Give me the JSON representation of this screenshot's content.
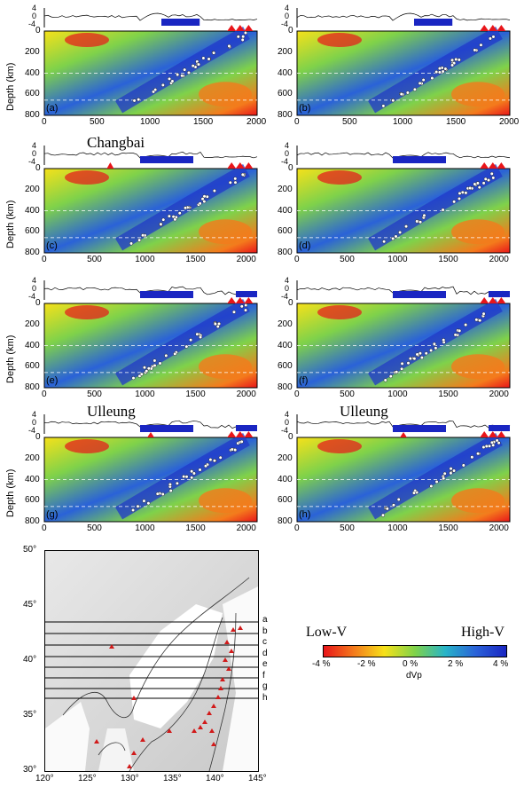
{
  "panels": [
    {
      "id": "a",
      "label": "(a)",
      "xmax": 2000,
      "xticks": [
        "0",
        "500",
        "1000",
        "1500",
        "2000"
      ],
      "site": ""
    },
    {
      "id": "b",
      "label": "(b)",
      "xmax": 2000,
      "xticks": [
        "0",
        "500",
        "1000",
        "1500",
        "2000"
      ],
      "site": ""
    },
    {
      "id": "c",
      "label": "(c)",
      "xmax": 2100,
      "xticks": [
        "0",
        "500",
        "1000",
        "1500",
        "2000"
      ],
      "site": "Changbai"
    },
    {
      "id": "d",
      "label": "(d)",
      "xmax": 2100,
      "xticks": [
        "0",
        "500",
        "1000",
        "1500",
        "2000"
      ],
      "site": ""
    },
    {
      "id": "e",
      "label": "(e)",
      "xmax": 2100,
      "xticks": [
        "0",
        "500",
        "1000",
        "1500",
        "2000"
      ],
      "site": ""
    },
    {
      "id": "f",
      "label": "(f)",
      "xmax": 2100,
      "xticks": [
        "0",
        "500",
        "1000",
        "1500",
        "2000"
      ],
      "site": ""
    },
    {
      "id": "g",
      "label": "(g)",
      "xmax": 2100,
      "xticks": [
        "0",
        "500",
        "1000",
        "1500",
        "2000"
      ],
      "site": "Ulleung"
    },
    {
      "id": "h",
      "label": "(h)",
      "xmax": 2100,
      "xticks": [
        "0",
        "500",
        "1000",
        "1500",
        "2000"
      ],
      "site": "Ulleung"
    }
  ],
  "axes": {
    "depth_label": "Depth (km)",
    "depth_ticks": [
      "0",
      "200",
      "400",
      "600",
      "800"
    ],
    "topo_ticks": [
      "4",
      "0",
      "-4"
    ]
  },
  "map": {
    "lat_ticks": [
      "50°",
      "45°",
      "40°",
      "35°",
      "30°"
    ],
    "lon_ticks": [
      "120°",
      "125°",
      "130°",
      "135°",
      "140°",
      "145°"
    ],
    "profile_labels": [
      "a",
      "b",
      "c",
      "d",
      "e",
      "f",
      "g",
      "h"
    ]
  },
  "legend": {
    "low": "Low-V",
    "high": "High-V",
    "ticks": [
      "-4 %",
      "-2 %",
      "0 %",
      "2 %",
      "4 %"
    ],
    "unit": "dVp",
    "colors": [
      "#e8151a",
      "#f47b1c",
      "#f6e11a",
      "#7fd24a",
      "#27b4c8",
      "#2a62d8",
      "#1a26c2"
    ]
  }
}
